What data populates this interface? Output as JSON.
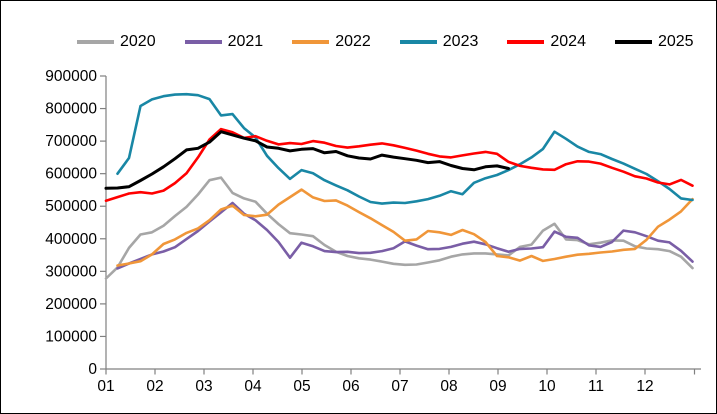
{
  "figure": {
    "background": "#ffffff",
    "border_color": "#000000"
  },
  "chart_data": {
    "type": "line",
    "title": "",
    "xlabel": "",
    "ylabel": "",
    "grid": "off",
    "legend_position": "top",
    "x_axis": {
      "tick_labels": [
        "01",
        "02",
        "03",
        "04",
        "05",
        "06",
        "07",
        "08",
        "09",
        "10",
        "11",
        "12"
      ],
      "granularity": "weekly",
      "points_per_series": 52
    },
    "y_axis": {
      "min": 0,
      "max": 900000,
      "tick_step": 100000,
      "tick_labels": [
        "0",
        "100000",
        "200000",
        "300000",
        "400000",
        "500000",
        "600000",
        "700000",
        "800000",
        "900000"
      ]
    },
    "series": [
      {
        "name": "2020",
        "color": "#a6a6a6",
        "values": [
          278000,
          312000,
          372000,
          413000,
          420000,
          440000,
          470000,
          498000,
          536000,
          580000,
          588000,
          541000,
          524000,
          514000,
          477000,
          445000,
          417000,
          413000,
          408000,
          381000,
          360000,
          347000,
          340000,
          336000,
          330000,
          323000,
          320000,
          321000,
          327000,
          334000,
          345000,
          352000,
          355000,
          355000,
          352000,
          349000,
          375000,
          382000,
          425000,
          446000,
          398000,
          396000,
          383000,
          388000,
          395000,
          394000,
          377000,
          370000,
          368000,
          362000,
          345000,
          310000
        ]
      },
      {
        "name": "2021",
        "color": "#7a5ea6",
        "values": [
          null,
          309000,
          324000,
          338000,
          352000,
          361000,
          374000,
          399000,
          424000,
          453000,
          481000,
          510000,
          477000,
          457000,
          427000,
          390000,
          342000,
          388000,
          377000,
          362000,
          359000,
          360000,
          356000,
          357000,
          362000,
          371000,
          392000,
          379000,
          368000,
          369000,
          375000,
          385000,
          391000,
          383000,
          371000,
          360000,
          369000,
          370000,
          374000,
          422000,
          406000,
          403000,
          380000,
          375000,
          390000,
          425000,
          420000,
          408000,
          394000,
          389000,
          363000,
          330000
        ]
      },
      {
        "name": "2022",
        "color": "#f09639",
        "values": [
          null,
          318000,
          324000,
          331000,
          352000,
          384000,
          398000,
          418000,
          432000,
          457000,
          490000,
          502000,
          473000,
          469000,
          474000,
          505000,
          528000,
          551000,
          527000,
          516000,
          518000,
          502000,
          482000,
          463000,
          442000,
          421000,
          394000,
          398000,
          424000,
          420000,
          412000,
          427000,
          414000,
          390000,
          347000,
          343000,
          333000,
          347000,
          332000,
          338000,
          345000,
          351000,
          354000,
          358000,
          361000,
          366000,
          369000,
          397000,
          437000,
          459000,
          484000,
          522000
        ]
      },
      {
        "name": "2023",
        "color": "#1987a5",
        "values": [
          null,
          600000,
          648000,
          808000,
          828000,
          838000,
          843000,
          844000,
          841000,
          829000,
          779000,
          783000,
          740000,
          711000,
          655000,
          617000,
          584000,
          611000,
          601000,
          580000,
          564000,
          549000,
          530000,
          513000,
          508000,
          511000,
          510000,
          515000,
          522000,
          532000,
          546000,
          537000,
          572000,
          586000,
          596000,
          611000,
          629000,
          650000,
          676000,
          729000,
          707000,
          683000,
          667000,
          660000,
          645000,
          631000,
          615000,
          599000,
          577000,
          553000,
          524000,
          519000
        ]
      },
      {
        "name": "2024",
        "color": "#ff0000",
        "values": [
          517000,
          528000,
          539000,
          543000,
          539000,
          548000,
          571000,
          601000,
          650000,
          705000,
          737000,
          727000,
          710000,
          715000,
          701000,
          690000,
          694000,
          691000,
          700000,
          695000,
          685000,
          680000,
          684000,
          689000,
          693000,
          687000,
          679000,
          671000,
          661000,
          653000,
          650000,
          656000,
          662000,
          667000,
          661000,
          636000,
          624000,
          618000,
          613000,
          612000,
          629000,
          638000,
          637000,
          631000,
          618000,
          606000,
          592000,
          585000,
          573000,
          567000,
          581000,
          563000
        ]
      },
      {
        "name": "2025",
        "color": "#000000",
        "values": [
          555000,
          556000,
          560000,
          579000,
          599000,
          621000,
          646000,
          673000,
          678000,
          697000,
          729000,
          719000,
          709000,
          701000,
          682000,
          678000,
          670000,
          675000,
          677000,
          664000,
          668000,
          655000,
          648000,
          645000,
          657000,
          651000,
          646000,
          641000,
          634000,
          637000,
          625000,
          616000,
          612000,
          621000,
          624000,
          616000,
          null,
          null,
          null,
          null,
          null,
          null,
          null,
          null,
          null,
          null,
          null,
          null,
          null,
          null,
          null,
          null
        ]
      }
    ]
  }
}
